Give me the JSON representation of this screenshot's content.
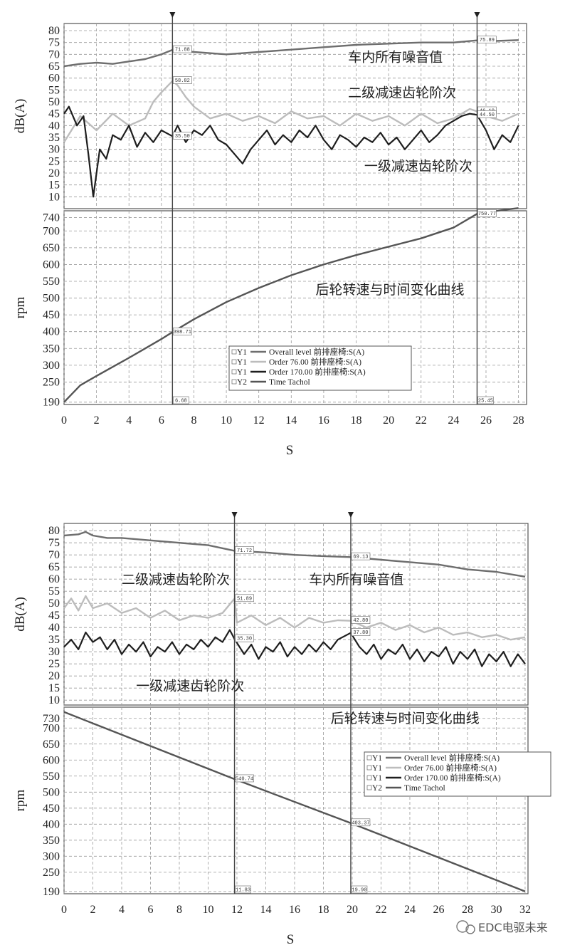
{
  "watermark": "EDC电驱未来",
  "chart_data": [
    {
      "type": "line",
      "upper": {
        "ylabel": "dB(A)",
        "ylim": [
          5,
          83
        ],
        "yticks": [
          80,
          75,
          70,
          65,
          60,
          55,
          50,
          45,
          40,
          35,
          30,
          25,
          20,
          15,
          10
        ],
        "annotations": [
          {
            "text": "车内所有噪音值",
            "x": 17.5,
            "y": 67
          },
          {
            "text": "二级减速齿轮阶次",
            "x": 17.5,
            "y": 52
          },
          {
            "text": "一级减速齿轮阶次",
            "x": 18.5,
            "y": 21
          }
        ]
      },
      "lower": {
        "ylabel": "rpm",
        "ylim": [
          183,
          760
        ],
        "yticks": [
          740,
          700,
          650,
          600,
          550,
          500,
          450,
          400,
          350,
          300,
          250,
          190
        ],
        "annotations": [
          {
            "text": "后轮转速与时间变化曲线",
            "x": 15.5,
            "y": 512
          }
        ]
      },
      "xlabel": "S",
      "xlim": [
        0,
        28.5
      ],
      "xticks": [
        0,
        2,
        4,
        6,
        8,
        10,
        12,
        14,
        16,
        18,
        20,
        22,
        24,
        26,
        28
      ],
      "cursors": [
        {
          "x": 6.68,
          "label": "6.68",
          "flags": [
            {
              "y": 71.88,
              "label": "71.88"
            },
            {
              "y": 58.82,
              "label": "58.82"
            },
            {
              "y": 35.5,
              "label": "35.50"
            },
            {
              "rpm": 398.71,
              "label": "398.71"
            }
          ]
        },
        {
          "x": 25.45,
          "label": "25.45",
          "flags": [
            {
              "y": 75.89,
              "label": "75.89"
            },
            {
              "y": 46.1,
              "label": "46.10"
            },
            {
              "y": 44.5,
              "label": "44.50"
            },
            {
              "rpm": 750.77,
              "label": "750.77"
            }
          ]
        }
      ],
      "legend": {
        "position": "lower-right",
        "entries": [
          {
            "prefix": "Y1",
            "text": "Overall level 前排座椅:S(A)",
            "color": "#6e6e6e"
          },
          {
            "prefix": "Y1",
            "text": "Order  76.00 前排座椅:S(A)",
            "color": "#bcbcbc"
          },
          {
            "prefix": "Y1",
            "text": "Order  170.00 前排座椅:S(A)",
            "color": "#1e1e1e"
          },
          {
            "prefix": "Y2",
            "text": "Time Tachol",
            "color": "#555555"
          }
        ]
      },
      "series": [
        {
          "axis": "upper",
          "color": "#6e6e6e",
          "x": [
            0,
            1,
            2,
            3,
            4,
            5,
            6,
            6.68,
            8,
            10,
            12,
            14,
            16,
            18,
            20,
            22,
            24,
            25.45,
            26,
            28
          ],
          "y": [
            65,
            66,
            66.5,
            66,
            67,
            68,
            70,
            71.9,
            71,
            70,
            71,
            72,
            73,
            74,
            74.5,
            75,
            75,
            75.9,
            75.5,
            76
          ]
        },
        {
          "axis": "upper",
          "color": "#bcbcbc",
          "x": [
            0,
            1,
            2,
            3,
            4,
            5,
            5.5,
            6,
            6.68,
            7,
            7.5,
            8,
            9,
            10,
            11,
            12,
            13,
            14,
            15,
            16,
            17,
            18,
            19,
            20,
            21,
            22,
            23,
            24,
            25,
            25.45,
            26,
            27,
            28
          ],
          "y": [
            33,
            44,
            38,
            45,
            40,
            43,
            50,
            54,
            58.8,
            57,
            52,
            48,
            43,
            45,
            42,
            44,
            41,
            46,
            43,
            44,
            40,
            45,
            42,
            44,
            40,
            45,
            41,
            43,
            47,
            46,
            44,
            42,
            45
          ]
        },
        {
          "axis": "upper",
          "color": "#1e1e1e",
          "x": [
            0,
            0.3,
            0.8,
            1.2,
            1.5,
            1.8,
            2.2,
            2.6,
            3,
            3.5,
            4,
            4.5,
            5,
            5.5,
            6,
            6.68,
            7,
            7.5,
            8,
            8.5,
            9,
            9.5,
            10,
            10.5,
            11,
            11.5,
            12,
            12.5,
            13,
            13.5,
            14,
            14.5,
            15,
            15.5,
            16,
            16.5,
            17,
            17.5,
            18,
            18.5,
            19,
            19.5,
            20,
            20.5,
            21,
            21.5,
            22,
            22.5,
            23,
            23.5,
            24,
            24.5,
            25,
            25.45,
            26,
            26.5,
            27,
            27.5,
            28
          ],
          "y": [
            45,
            48,
            40,
            44,
            28,
            10,
            30,
            26,
            36,
            34,
            40,
            31,
            37,
            33,
            38,
            35.5,
            40,
            33,
            38,
            36,
            40,
            34,
            32,
            28,
            24,
            30,
            34,
            38,
            32,
            36,
            33,
            38,
            35,
            40,
            34,
            30,
            36,
            34,
            31,
            35,
            33,
            37,
            32,
            35,
            30,
            34,
            38,
            33,
            36,
            40,
            42,
            44,
            45,
            44.5,
            38,
            30,
            36,
            33,
            40
          ]
        },
        {
          "axis": "lower",
          "color": "#555555",
          "x": [
            0,
            1,
            2,
            3,
            4,
            5,
            6,
            6.68,
            8,
            10,
            12,
            14,
            16,
            18,
            20,
            22,
            24,
            25.45,
            26,
            28
          ],
          "y": [
            190,
            240,
            268,
            295,
            322,
            350,
            378,
            398.7,
            437,
            488,
            530,
            568,
            600,
            628,
            653,
            678,
            710,
            750.8,
            756,
            768
          ]
        }
      ]
    },
    {
      "type": "line",
      "upper": {
        "ylabel": "dB(A)",
        "ylim": [
          8,
          83
        ],
        "yticks": [
          80,
          75,
          70,
          65,
          60,
          55,
          50,
          45,
          40,
          35,
          30,
          25,
          20,
          15,
          10
        ],
        "annotations": [
          {
            "text": "二级减速齿轮阶次",
            "x": 4.0,
            "y": 58
          },
          {
            "text": "车内所有噪音值",
            "x": 17.0,
            "y": 58
          },
          {
            "text": "一级减速齿轮阶次",
            "x": 5.0,
            "y": 14
          }
        ]
      },
      "lower": {
        "ylabel": "rpm",
        "ylim": [
          183,
          765
        ],
        "yticks": [
          730,
          700,
          650,
          600,
          550,
          500,
          450,
          400,
          350,
          300,
          250,
          190
        ],
        "annotations": [
          {
            "text": "后轮转速与时间变化曲线",
            "x": 18.5,
            "y": 716
          }
        ]
      },
      "xlabel": "S",
      "xlim": [
        0,
        32.2
      ],
      "xticks": [
        0,
        2,
        4,
        6,
        8,
        10,
        12,
        14,
        16,
        18,
        20,
        22,
        24,
        26,
        28,
        30,
        32
      ],
      "cursors": [
        {
          "x": 11.83,
          "label": "11.83",
          "flags": [
            {
              "y": 71.72,
              "label": "71.72"
            },
            {
              "y": 51.89,
              "label": "51.89"
            },
            {
              "y": 35.3,
              "label": "35.30"
            },
            {
              "rpm": 540.74,
              "label": "540.74"
            }
          ]
        },
        {
          "x": 19.9,
          "label": "19.90",
          "flags": [
            {
              "y": 69.13,
              "label": "69.13"
            },
            {
              "y": 42.8,
              "label": "42.80"
            },
            {
              "y": 37.8,
              "label": "37.80"
            },
            {
              "rpm": 403.37,
              "label": "403.37"
            }
          ]
        }
      ],
      "legend": {
        "position": "center-right",
        "entries": [
          {
            "prefix": "Y1",
            "text": "Overall level 前排座椅:S(A)",
            "color": "#6e6e6e"
          },
          {
            "prefix": "Y1",
            "text": "Order  76.00 前排座椅:S(A)",
            "color": "#bcbcbc"
          },
          {
            "prefix": "Y1",
            "text": "Order  170.00 前排座椅:S(A)",
            "color": "#1e1e1e"
          },
          {
            "prefix": "Y2",
            "text": "Time Tachol",
            "color": "#555555"
          }
        ]
      },
      "series": [
        {
          "axis": "upper",
          "color": "#6e6e6e",
          "x": [
            0,
            1,
            1.5,
            2,
            3,
            4,
            6,
            8,
            10,
            11.83,
            14,
            16,
            18,
            19.9,
            22,
            24,
            26,
            28,
            30,
            31,
            32
          ],
          "y": [
            78,
            78.5,
            79.5,
            78,
            77,
            77,
            76,
            75,
            74,
            71.7,
            71,
            70,
            69.5,
            69.1,
            68,
            67,
            66,
            64,
            63,
            62,
            61
          ]
        },
        {
          "axis": "upper",
          "color": "#bcbcbc",
          "x": [
            0,
            0.5,
            1,
            1.5,
            2,
            3,
            4,
            5,
            6,
            7,
            8,
            9,
            10,
            11,
            11.83,
            12,
            13,
            14,
            15,
            16,
            17,
            18,
            19,
            19.9,
            21,
            22,
            23,
            24,
            25,
            26,
            27,
            28,
            29,
            30,
            31,
            32
          ],
          "y": [
            48,
            52,
            47,
            53,
            48,
            50,
            46,
            48,
            44,
            47,
            43,
            45,
            44,
            46,
            51.9,
            42,
            45,
            41,
            44,
            40,
            44,
            42,
            43,
            42.8,
            40,
            42,
            39,
            41,
            38,
            40,
            37,
            38,
            36,
            37,
            35,
            36
          ]
        },
        {
          "axis": "upper",
          "color": "#1e1e1e",
          "x": [
            0,
            0.5,
            1,
            1.5,
            2,
            2.5,
            3,
            3.5,
            4,
            4.5,
            5,
            5.5,
            6,
            6.5,
            7,
            7.5,
            8,
            8.5,
            9,
            9.5,
            10,
            10.5,
            11,
            11.5,
            11.83,
            12.5,
            13,
            13.5,
            14,
            14.5,
            15,
            15.5,
            16,
            16.5,
            17,
            17.5,
            18,
            18.5,
            19,
            19.9,
            20.5,
            21,
            21.5,
            22,
            22.5,
            23,
            23.5,
            24,
            24.5,
            25,
            25.5,
            26,
            26.5,
            27,
            27.5,
            28,
            28.5,
            29,
            29.5,
            30,
            30.5,
            31,
            31.5,
            32
          ],
          "y": [
            32,
            35,
            31,
            38,
            34,
            36,
            31,
            35,
            29,
            33,
            30,
            34,
            28,
            32,
            30,
            34,
            29,
            33,
            31,
            35,
            32,
            36,
            34,
            39,
            35.3,
            29,
            33,
            27,
            32,
            30,
            34,
            28,
            32,
            29,
            33,
            30,
            34,
            31,
            35,
            37.8,
            32,
            29,
            33,
            27,
            31,
            29,
            33,
            27,
            31,
            26,
            30,
            28,
            32,
            25,
            30,
            27,
            31,
            24,
            29,
            26,
            30,
            24,
            29,
            25
          ]
        },
        {
          "axis": "lower",
          "color": "#555555",
          "x": [
            0,
            11.83,
            19.9,
            32
          ],
          "y": [
            750,
            540.7,
            403.4,
            190
          ]
        }
      ]
    }
  ]
}
